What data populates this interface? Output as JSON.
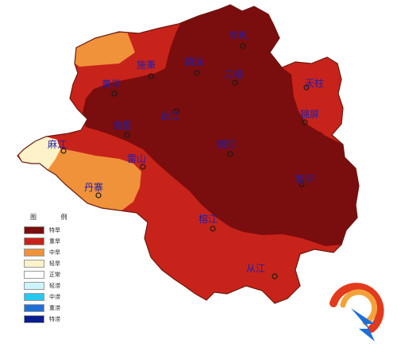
{
  "legend": {
    "title": "图 例",
    "items": [
      {
        "label": "特旱",
        "color": "#7a0d0d"
      },
      {
        "label": "重旱",
        "color": "#c8231a"
      },
      {
        "label": "中旱",
        "color": "#f0923a"
      },
      {
        "label": "轻旱",
        "color": "#fdf2c8"
      },
      {
        "label": "正常",
        "color": "#ffffff"
      },
      {
        "label": "轻涝",
        "color": "#cdf4fb"
      },
      {
        "label": "中涝",
        "color": "#28c8ee"
      },
      {
        "label": "重涝",
        "color": "#1f6fd8"
      },
      {
        "label": "特涝",
        "color": "#0a1d8c"
      }
    ]
  },
  "cities": [
    {
      "name": "岑巩",
      "key": "cengong"
    },
    {
      "name": "施秉",
      "key": "shibing"
    },
    {
      "name": "镇远",
      "key": "zhenyuan"
    },
    {
      "name": "三穗",
      "key": "sansui"
    },
    {
      "name": "黄平",
      "key": "huangping"
    },
    {
      "name": "天柱",
      "key": "tianzhu"
    },
    {
      "name": "台江",
      "key": "taijiang"
    },
    {
      "name": "锦屏",
      "key": "jinping"
    },
    {
      "name": "凯里",
      "key": "kaili"
    },
    {
      "name": "麻江",
      "key": "majiang"
    },
    {
      "name": "雷山",
      "key": "leishan"
    },
    {
      "name": "剑河",
      "key": "jianhe"
    },
    {
      "name": "丹寨",
      "key": "danzhai"
    },
    {
      "name": "黎平",
      "key": "liping"
    },
    {
      "name": "榕江",
      "key": "rongjiang"
    },
    {
      "name": "从江",
      "key": "congjiang"
    }
  ]
}
